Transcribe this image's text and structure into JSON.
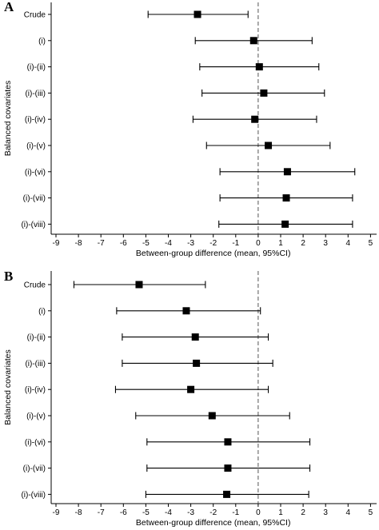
{
  "chart_data": [
    {
      "panel": "A",
      "type": "scatter",
      "xlabel": "Between-group difference (mean, 95%CI)",
      "ylabel": "Balanced covariates",
      "xlim": [
        -9,
        5
      ],
      "xticks": [
        -9,
        -8,
        -7,
        -6,
        -5,
        -4,
        -3,
        -2,
        -1,
        0,
        1,
        2,
        3,
        4,
        5
      ],
      "reference_line": 0,
      "categories": [
        "Crude",
        "(i)",
        "(i)-(ii)",
        "(i)-(iii)",
        "(i)-(iv)",
        "(i)-(v)",
        "(i)-(vi)",
        "(i)-(vii)",
        "(i)-(viii)"
      ],
      "estimates": [
        -2.7,
        -0.2,
        0.05,
        0.25,
        -0.15,
        0.45,
        1.3,
        1.25,
        1.2
      ],
      "ci_lower": [
        -4.9,
        -2.8,
        -2.6,
        -2.5,
        -2.9,
        -2.3,
        -1.7,
        -1.7,
        -1.75
      ],
      "ci_upper": [
        -0.45,
        2.4,
        2.7,
        2.95,
        2.6,
        3.2,
        4.3,
        4.2,
        4.2
      ]
    },
    {
      "panel": "B",
      "type": "scatter",
      "xlabel": "Between-group difference (mean, 95%CI)",
      "ylabel": "Balanced covariates",
      "xlim": [
        -9,
        5
      ],
      "xticks": [
        -9,
        -8,
        -7,
        -6,
        -5,
        -4,
        -3,
        -2,
        -1,
        0,
        1,
        2,
        3,
        4,
        5
      ],
      "reference_line": 0,
      "categories": [
        "Crude",
        "(i)",
        "(i)-(ii)",
        "(i)-(iii)",
        "(i)-(iv)",
        "(i)-(v)",
        "(i)-(vi)",
        "(i)-(vii)",
        "(i)-(viii)"
      ],
      "estimates": [
        -5.3,
        -3.2,
        -2.8,
        -2.75,
        -3.0,
        -2.05,
        -1.35,
        -1.35,
        -1.4
      ],
      "ci_lower": [
        -8.2,
        -6.3,
        -6.05,
        -6.05,
        -6.35,
        -5.45,
        -4.95,
        -4.95,
        -5.0
      ],
      "ci_upper": [
        -2.35,
        0.1,
        0.45,
        0.65,
        0.45,
        1.4,
        2.3,
        2.3,
        2.25
      ]
    }
  ]
}
